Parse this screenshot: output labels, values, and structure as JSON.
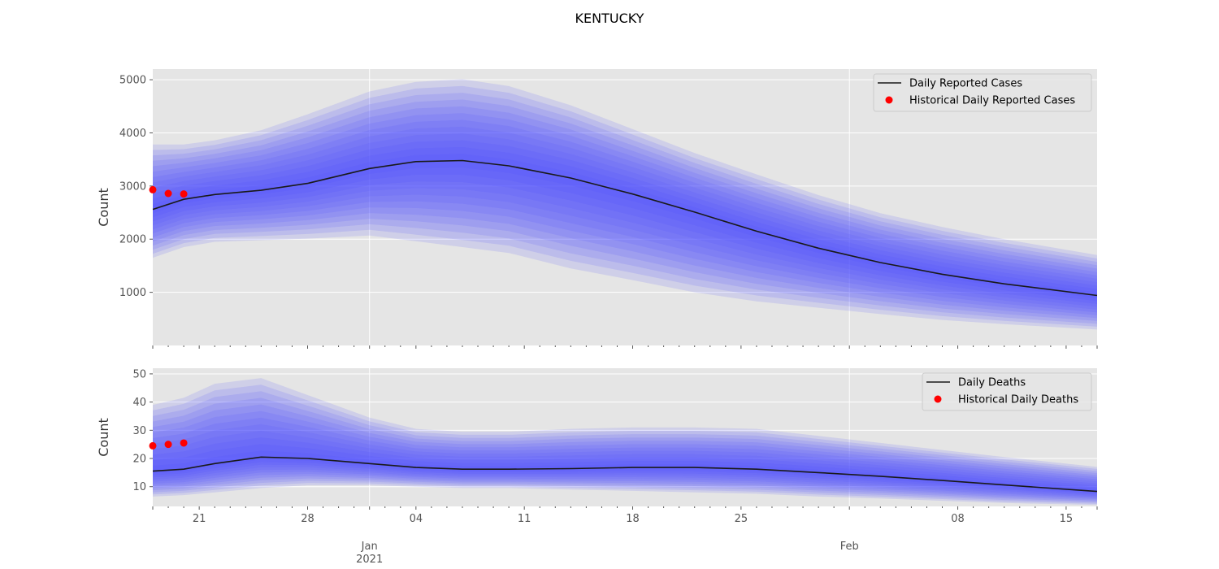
{
  "figure": {
    "title": "KENTUCKY"
  },
  "colors": {
    "panel_bg": "#e5e5e5",
    "grid": "#ffffff",
    "band": "#5050ff",
    "median": "#1a1a1a",
    "historical": "#ff0000",
    "tick_text": "#555555"
  },
  "x_axis": {
    "date_range": [
      "2020-12-18",
      "2021-02-17"
    ],
    "minor_ticks": "daily",
    "labels": [
      {
        "date": "2020-12-21",
        "text": "21"
      },
      {
        "date": "2020-12-28",
        "text": "28"
      },
      {
        "date": "2021-01-04",
        "text": "04"
      },
      {
        "date": "2021-01-11",
        "text": "11"
      },
      {
        "date": "2021-01-18",
        "text": "18"
      },
      {
        "date": "2021-01-25",
        "text": "25"
      },
      {
        "date": "2021-02-08",
        "text": "08"
      },
      {
        "date": "2021-02-15",
        "text": "15"
      }
    ],
    "major_labels": [
      {
        "date": "2021-01-01",
        "line1": "Jan",
        "line2": "2021"
      },
      {
        "date": "2021-02-01",
        "line1": "Feb",
        "line2": ""
      }
    ]
  },
  "chart_data": [
    {
      "type": "area",
      "ylabel": "Count",
      "ylim": [
        0,
        5200
      ],
      "yticks": [
        1000,
        2000,
        3000,
        4000,
        5000
      ],
      "grid": true,
      "legend_position": "top-right",
      "legend": [
        "Daily Reported Cases",
        "Historical Daily Reported Cases"
      ],
      "median": {
        "name": "Daily Reported Cases",
        "x": [
          "2020-12-18",
          "2020-12-20",
          "2020-12-22",
          "2020-12-25",
          "2020-12-28",
          "2021-01-01",
          "2021-01-04",
          "2021-01-07",
          "2021-01-10",
          "2021-01-14",
          "2021-01-18",
          "2021-01-22",
          "2021-01-26",
          "2021-01-30",
          "2021-02-03",
          "2021-02-07",
          "2021-02-11",
          "2021-02-17"
        ],
        "values": [
          2560,
          2750,
          2840,
          2920,
          3050,
          3330,
          3460,
          3480,
          3380,
          3150,
          2850,
          2510,
          2150,
          1830,
          1560,
          1340,
          1160,
          940
        ]
      },
      "outer_band_lower": {
        "x": [
          "2020-12-18",
          "2020-12-20",
          "2020-12-22",
          "2020-12-25",
          "2020-12-28",
          "2021-01-01",
          "2021-01-04",
          "2021-01-07",
          "2021-01-10",
          "2021-01-14",
          "2021-01-18",
          "2021-01-22",
          "2021-01-26",
          "2021-01-30",
          "2021-02-03",
          "2021-02-07",
          "2021-02-11",
          "2021-02-17"
        ],
        "values": [
          1650,
          1850,
          1950,
          1980,
          2010,
          2070,
          1960,
          1850,
          1740,
          1450,
          1230,
          1000,
          830,
          710,
          590,
          480,
          400,
          300
        ]
      },
      "outer_band_upper": {
        "x": [
          "2020-12-18",
          "2020-12-20",
          "2020-12-22",
          "2020-12-25",
          "2020-12-28",
          "2021-01-01",
          "2021-01-04",
          "2021-01-07",
          "2021-01-10",
          "2021-01-14",
          "2021-01-18",
          "2021-01-22",
          "2021-01-26",
          "2021-01-30",
          "2021-02-03",
          "2021-02-07",
          "2021-02-11",
          "2021-02-17"
        ],
        "values": [
          3780,
          3780,
          3860,
          4050,
          4350,
          4780,
          4960,
          5010,
          4880,
          4520,
          4070,
          3620,
          3220,
          2830,
          2490,
          2230,
          2000,
          1700
        ]
      },
      "historical": {
        "name": "Historical Daily Reported Cases",
        "x": [
          "2020-12-18",
          "2020-12-19",
          "2020-12-20"
        ],
        "values": [
          2930,
          2860,
          2850
        ]
      }
    },
    {
      "type": "area",
      "ylabel": "Count",
      "ylim": [
        3,
        52
      ],
      "yticks": [
        10,
        20,
        30,
        40,
        50
      ],
      "grid": true,
      "legend_position": "top-right",
      "legend": [
        "Daily Deaths",
        "Historical Daily Deaths"
      ],
      "median": {
        "name": "Daily Deaths",
        "x": [
          "2020-12-18",
          "2020-12-20",
          "2020-12-22",
          "2020-12-25",
          "2020-12-28",
          "2021-01-01",
          "2021-01-04",
          "2021-01-07",
          "2021-01-10",
          "2021-01-14",
          "2021-01-18",
          "2021-01-22",
          "2021-01-26",
          "2021-01-30",
          "2021-02-03",
          "2021-02-07",
          "2021-02-11",
          "2021-02-17"
        ],
        "values": [
          15.5,
          16.2,
          18.2,
          20.5,
          20.0,
          18.2,
          16.8,
          16.2,
          16.2,
          16.4,
          16.8,
          16.8,
          16.2,
          15.0,
          13.7,
          12.2,
          10.6,
          8.3
        ]
      },
      "outer_band_lower": {
        "x": [
          "2020-12-18",
          "2020-12-20",
          "2020-12-22",
          "2020-12-25",
          "2020-12-28",
          "2021-01-01",
          "2021-01-04",
          "2021-01-07",
          "2021-01-10",
          "2021-01-14",
          "2021-01-18",
          "2021-01-22",
          "2021-01-26",
          "2021-01-30",
          "2021-02-03",
          "2021-02-07",
          "2021-02-11",
          "2021-02-17"
        ],
        "values": [
          6.5,
          7.0,
          8.0,
          9.5,
          10.5,
          10.5,
          10.0,
          9.5,
          9.5,
          9.0,
          8.5,
          8.0,
          7.5,
          6.5,
          5.8,
          5.0,
          4.2,
          3.5
        ]
      },
      "outer_band_upper": {
        "x": [
          "2020-12-18",
          "2020-12-20",
          "2020-12-22",
          "2020-12-25",
          "2020-12-28",
          "2021-01-01",
          "2021-01-04",
          "2021-01-07",
          "2021-01-10",
          "2021-01-14",
          "2021-01-18",
          "2021-01-22",
          "2021-01-26",
          "2021-01-30",
          "2021-02-03",
          "2021-02-07",
          "2021-02-11",
          "2021-02-17"
        ],
        "values": [
          39.0,
          41.5,
          46.5,
          48.5,
          42.5,
          34.5,
          30.5,
          29.5,
          29.5,
          30.5,
          31.0,
          31.0,
          30.5,
          28.0,
          25.5,
          23.0,
          20.5,
          17.0
        ]
      },
      "historical": {
        "name": "Historical Daily Deaths",
        "x": [
          "2020-12-18",
          "2020-12-19",
          "2020-12-20"
        ],
        "values": [
          24.5,
          25.0,
          25.5
        ]
      }
    }
  ]
}
